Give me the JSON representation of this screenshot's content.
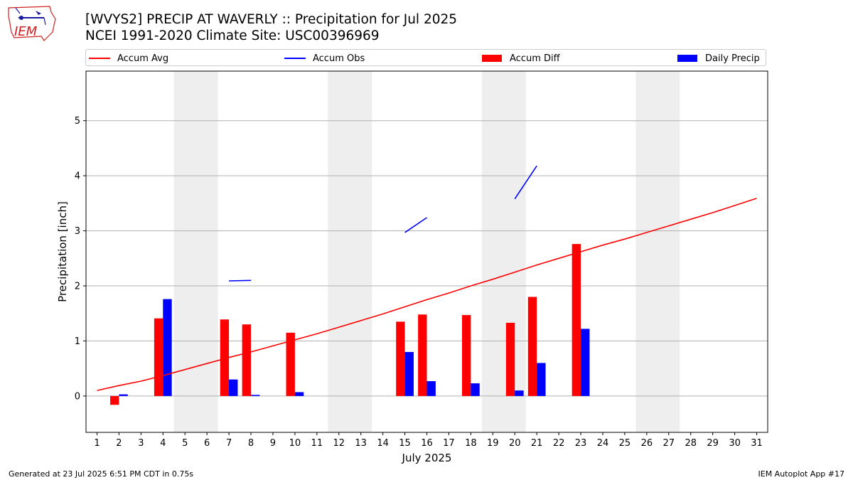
{
  "header": {
    "title_line1": "[WVYS2] PRECIP AT WAVERLY :: Precipitation for Jul 2025",
    "title_line2": "NCEI 1991-2020 Climate Site: USC00396969",
    "logo_text": "IEM"
  },
  "footer": {
    "generated": "Generated at 23 Jul 2025 6:51 PM CDT in 0.75s",
    "app": "IEM Autoplot App #17"
  },
  "legend": {
    "accum_avg": "Accum Avg",
    "accum_obs": "Accum Obs",
    "accum_diff": "Accum Diff",
    "daily_precip": "Daily Precip"
  },
  "colors": {
    "accum_avg": "#ff0000",
    "accum_obs": "#0000ff",
    "accum_diff": "#ff0000",
    "daily_precip": "#0000ff",
    "weekend_band": "#eeeeee",
    "grid": "#b0b0b0"
  },
  "chart_data": {
    "type": "bar",
    "xlabel": "July 2025",
    "ylabel": "Precipitation [inch]",
    "xlim": [
      0.5,
      31.5
    ],
    "ylim": [
      -0.66,
      5.9
    ],
    "yticks": [
      0,
      1,
      2,
      3,
      4,
      5
    ],
    "grid": "horizontal",
    "legend_position": "top",
    "categories": [
      "1",
      "2",
      "3",
      "4",
      "5",
      "6",
      "7",
      "8",
      "9",
      "10",
      "11",
      "12",
      "13",
      "14",
      "15",
      "16",
      "17",
      "18",
      "19",
      "20",
      "21",
      "22",
      "23",
      "24",
      "25",
      "26",
      "27",
      "28",
      "29",
      "30",
      "31"
    ],
    "weekend_days": [
      [
        5,
        6
      ],
      [
        12,
        13
      ],
      [
        19,
        20
      ],
      [
        26,
        27
      ]
    ],
    "series": [
      {
        "name": "Accum Avg",
        "type": "line",
        "x": [
          1,
          2,
          3,
          4,
          5,
          6,
          7,
          8,
          9,
          10,
          11,
          12,
          13,
          14,
          15,
          16,
          17,
          18,
          19,
          20,
          21,
          22,
          23,
          24,
          25,
          26,
          27,
          28,
          29,
          30,
          31
        ],
        "values": [
          0.1,
          0.19,
          0.27,
          0.37,
          0.48,
          0.59,
          0.7,
          0.8,
          0.91,
          1.02,
          1.13,
          1.25,
          1.37,
          1.49,
          1.62,
          1.75,
          1.87,
          2.0,
          2.12,
          2.25,
          2.38,
          2.5,
          2.62,
          2.74,
          2.85,
          2.97,
          3.09,
          3.21,
          3.33,
          3.46,
          3.59
        ]
      },
      {
        "name": "Accum Obs",
        "type": "line",
        "segments": [
          {
            "x": [
              7,
              8
            ],
            "values": [
              2.09,
              2.1
            ]
          },
          {
            "x": [
              15,
              16
            ],
            "values": [
              2.97,
              3.24
            ]
          },
          {
            "x": [
              20,
              21
            ],
            "values": [
              3.58,
              4.18
            ]
          }
        ]
      },
      {
        "name": "Accum Diff",
        "type": "bar",
        "x": [
          2,
          4,
          7,
          8,
          10,
          15,
          16,
          18,
          20,
          21,
          23
        ],
        "values": [
          -0.16,
          1.41,
          1.39,
          1.3,
          1.15,
          1.35,
          1.48,
          1.47,
          1.33,
          1.8,
          2.76
        ]
      },
      {
        "name": "Daily Precip",
        "type": "bar",
        "x": [
          2,
          4,
          7,
          8,
          10,
          15,
          16,
          18,
          20,
          21,
          23
        ],
        "values": [
          0.03,
          1.76,
          0.3,
          0.02,
          0.07,
          0.8,
          0.27,
          0.23,
          0.1,
          0.6,
          1.22
        ]
      }
    ]
  }
}
